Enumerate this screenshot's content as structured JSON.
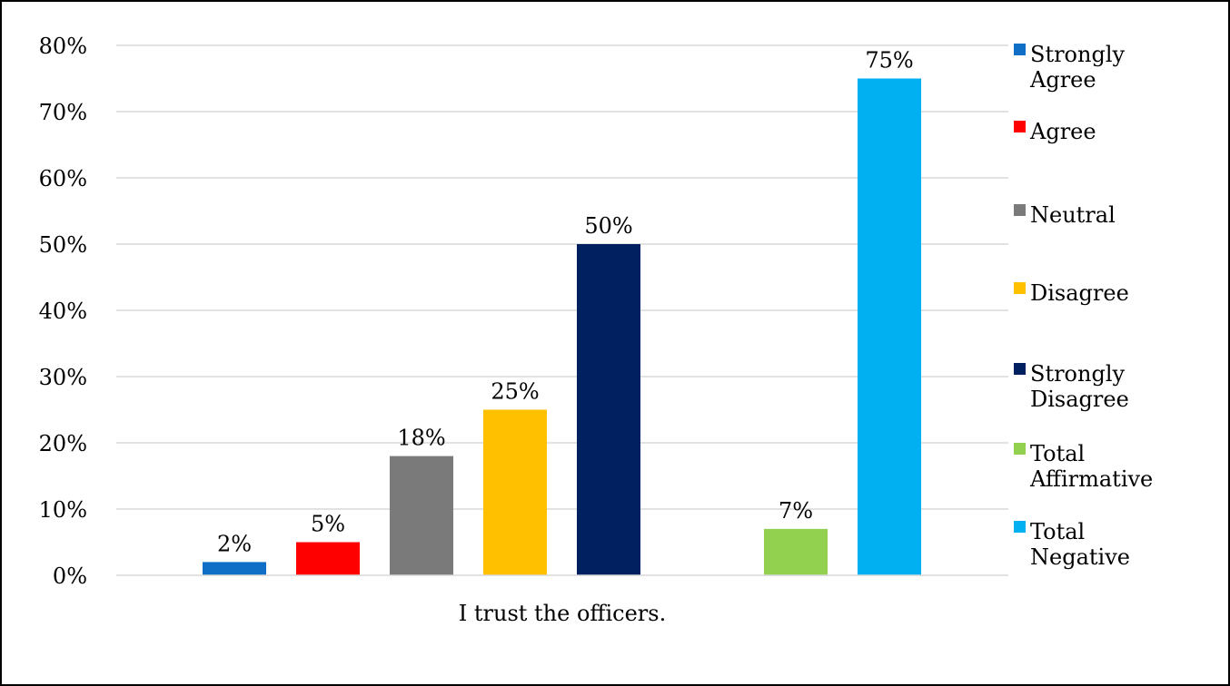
{
  "chart_data": {
    "type": "bar",
    "title": "",
    "xlabel": "",
    "ylabel": "",
    "categories": [
      "I trust the officers."
    ],
    "ylim": [
      0,
      80
    ],
    "y_ticks": [
      0,
      10,
      20,
      30,
      40,
      50,
      60,
      70,
      80
    ],
    "y_tick_suffix": "%",
    "grid": true,
    "legend_position": "right",
    "series": [
      {
        "name": "Strongly Agree",
        "value": 2,
        "label": "2%",
        "color": "#0f6fc6"
      },
      {
        "name": "Agree",
        "value": 5,
        "label": "5%",
        "color": "#ff0000"
      },
      {
        "name": "Neutral",
        "value": 18,
        "label": "18%",
        "color": "#7a7a7a"
      },
      {
        "name": "Disagree",
        "value": 25,
        "label": "25%",
        "color": "#ffc000"
      },
      {
        "name": "Strongly Disagree",
        "value": 50,
        "label": "50%",
        "color": "#002060"
      },
      {
        "name": "Total Affirmative",
        "value": 7,
        "label": "7%",
        "color": "#92d050"
      },
      {
        "name": "Total Negative",
        "value": 75,
        "label": "75%",
        "color": "#00b0f0"
      }
    ]
  }
}
